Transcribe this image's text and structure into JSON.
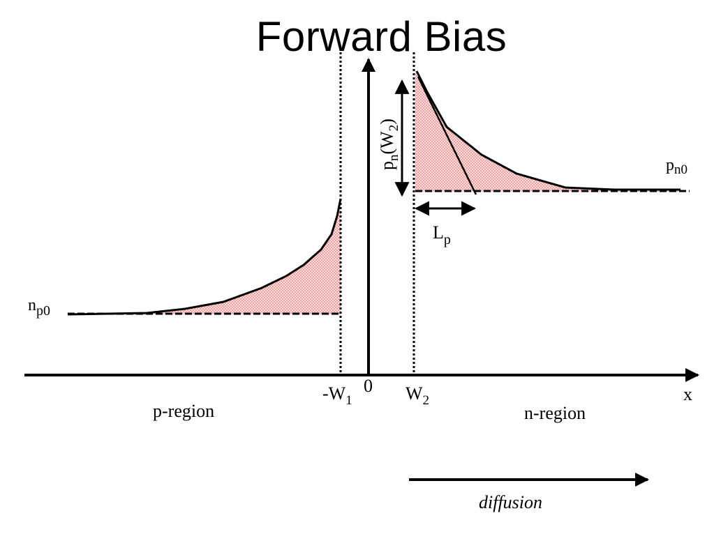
{
  "title": "Forward Bias",
  "labels": {
    "np0_main": "n",
    "np0_sub": "p0",
    "pn0_main": "p",
    "pn0_sub": "n0",
    "pnw2_p": "p",
    "pnw2_n": "n",
    "pnw2_open": "(W",
    "pnw2_two": "2",
    "pnw2_close": ")",
    "lp_main": "L",
    "lp_sub": "p",
    "minus_w1_main": "-W",
    "minus_w1_sub": "1",
    "zero": "0",
    "w2_main": "W",
    "w2_sub": "2",
    "x_axis": "x",
    "p_region": "p-region",
    "n_region": "n-region",
    "diffusion": "diffusion"
  },
  "colors": {
    "line": "#000000",
    "fill": "#f4a7a7",
    "dots": "#e05050"
  }
}
